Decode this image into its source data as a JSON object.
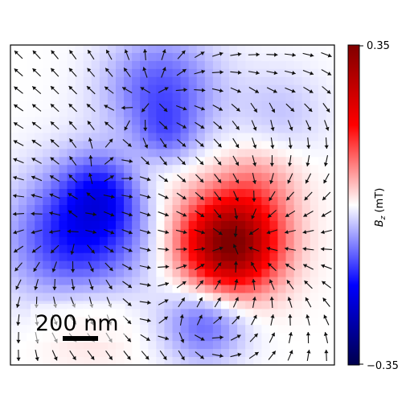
{
  "chart_data": {
    "type": "heatmap",
    "title": "",
    "overlay": "vector-field-arrows",
    "colormap": "seismic",
    "colors": {
      "min": "#00004c",
      "mid": "#ffffff",
      "max": "#800000"
    },
    "colorbar": {
      "label_main": "B",
      "label_sub": "z",
      "label_unit": " (mT)",
      "vmin": -0.35,
      "vmax": 0.35,
      "tick_labels": [
        "0.35",
        "−0.35"
      ]
    },
    "scale_bar": {
      "label": "200 nm",
      "length_nm": 200
    },
    "grid_size": [
      18,
      18
    ],
    "features": [
      {
        "sign": "positive",
        "peak_mT": 0.35,
        "center": [
          1.6,
          -1.1
        ]
      },
      {
        "sign": "negative",
        "peak_mT": -0.22,
        "center": [
          -2.6,
          -1.0
        ]
      },
      {
        "sign": "negative",
        "peak_mT": -0.15,
        "center": [
          -0.3,
          3.2
        ]
      },
      {
        "sign": "negative",
        "peak_mT": -0.12,
        "center": [
          0.9,
          -3.3
        ]
      }
    ]
  }
}
